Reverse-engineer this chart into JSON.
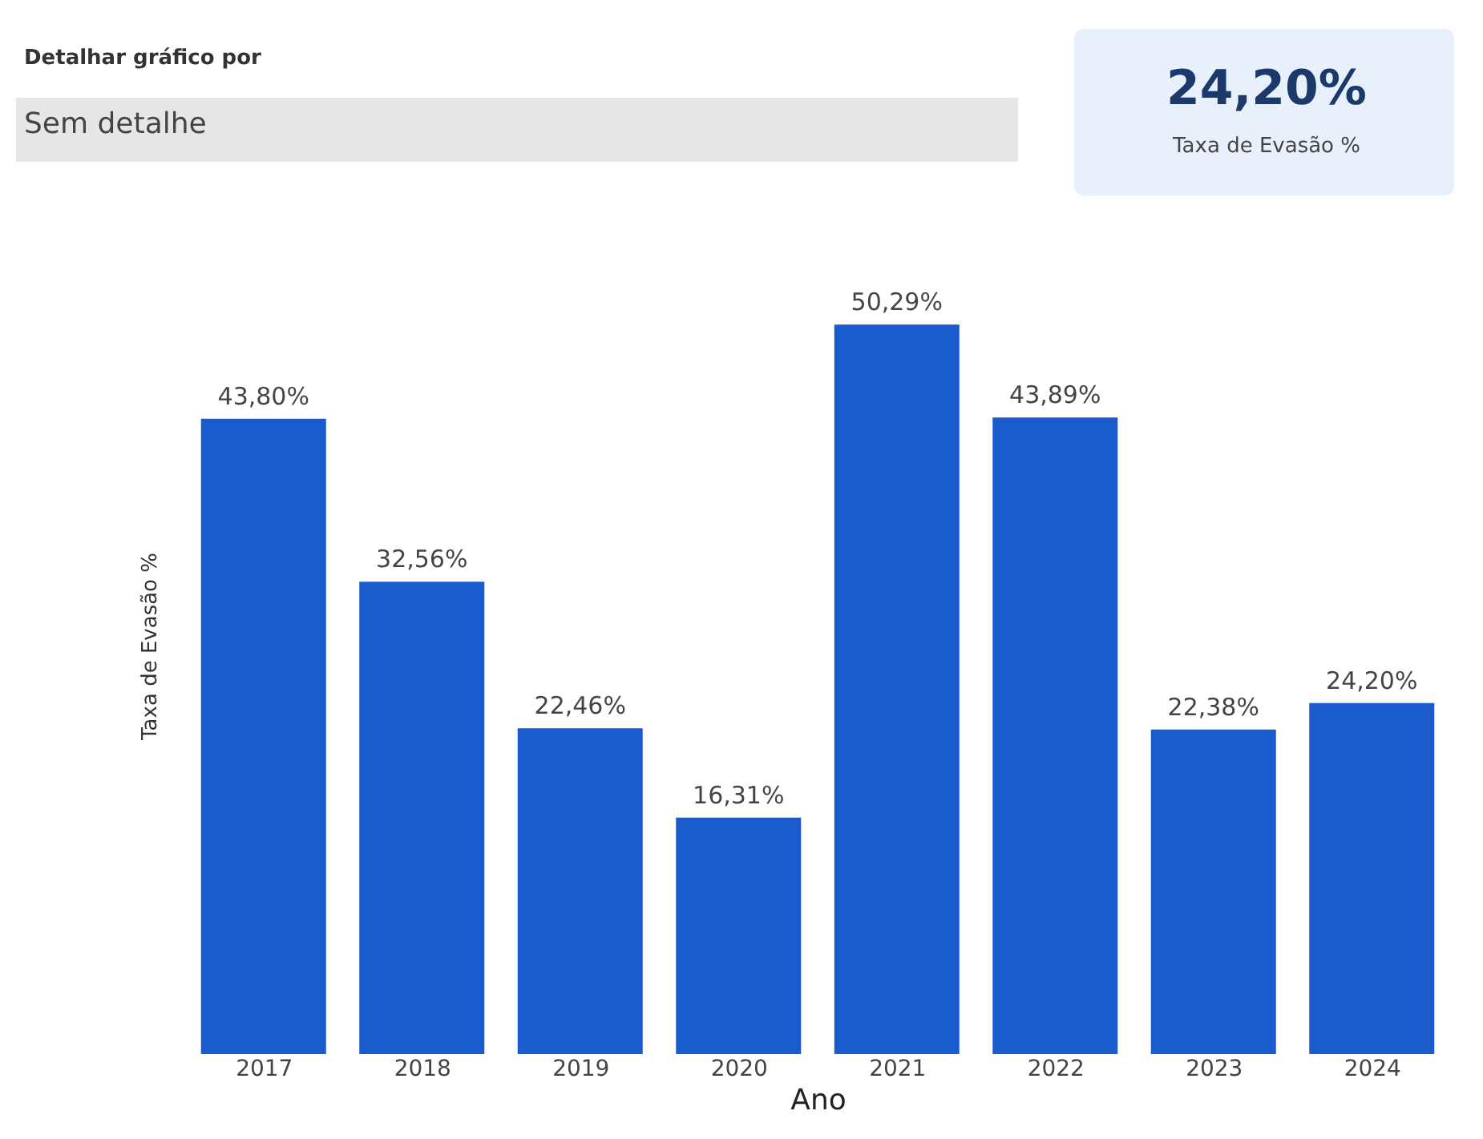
{
  "chart_data": {
    "type": "bar",
    "xlabel": "Ano",
    "ylabel": "Taxa de Evasão %",
    "categories": [
      "2017",
      "2018",
      "2019",
      "2020",
      "2021",
      "2022",
      "2023",
      "2024"
    ],
    "values": [
      43.8,
      32.56,
      22.46,
      16.31,
      50.29,
      43.89,
      22.38,
      24.2
    ],
    "value_labels": [
      "43,80%",
      "32,56%",
      "22,46%",
      "16,31%",
      "50,29%",
      "43,89%",
      "22,38%",
      "24,20%"
    ],
    "color": "#1a5bce",
    "grid": false,
    "annotations": [
      "Detalhar gráfico por",
      "Sem detalhe",
      "24,20%",
      "Taxa de Evasão %"
    ]
  }
}
